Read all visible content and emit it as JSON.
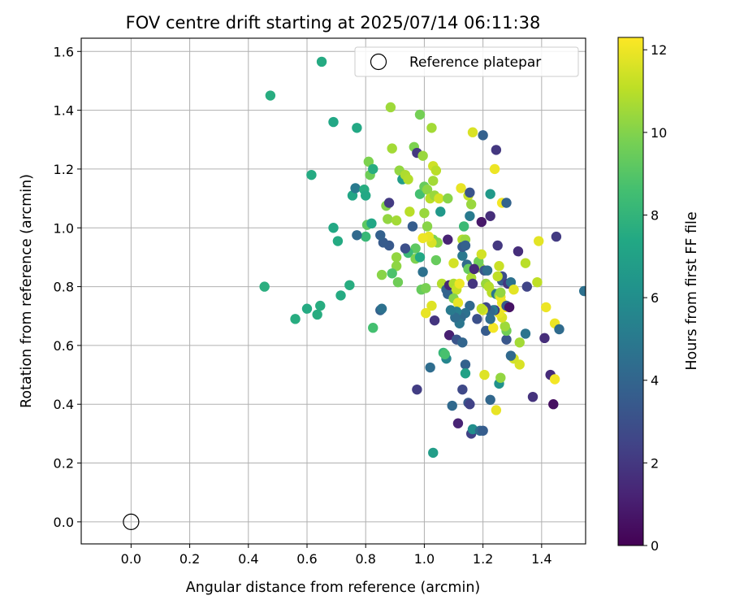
{
  "chart_data": {
    "type": "scatter",
    "title": "FOV centre drift starting at 2025/07/14 06:11:38",
    "xlabel": "Angular distance from reference (arcmin)",
    "ylabel": "Rotation from reference (arcmin)",
    "xlim": [
      -0.17,
      1.55
    ],
    "ylim": [
      -0.075,
      1.645
    ],
    "xticks": [
      "0.0",
      "0.2",
      "0.4",
      "0.6",
      "0.8",
      "1.0",
      "1.2",
      "1.4"
    ],
    "xtick_values": [
      0.0,
      0.2,
      0.4,
      0.6,
      0.8,
      1.0,
      1.2,
      1.4
    ],
    "yticks": [
      "0.0",
      "0.2",
      "0.4",
      "0.6",
      "0.8",
      "1.0",
      "1.2",
      "1.4",
      "1.6"
    ],
    "ytick_values": [
      0.0,
      0.2,
      0.4,
      0.6,
      0.8,
      1.0,
      1.2,
      1.4,
      1.6
    ],
    "grid": true,
    "legend": {
      "location": "top-right",
      "entries": [
        {
          "label": "Reference platepar",
          "marker": "open-circle"
        }
      ]
    },
    "reference_point": {
      "x": 0.0,
      "y": 0.0,
      "label": "Reference platepar"
    },
    "colorbar": {
      "label": "Hours from first FF file",
      "range": [
        0,
        12.3
      ],
      "ticks": [
        "0",
        "2",
        "4",
        "6",
        "8",
        "10",
        "12"
      ],
      "tick_values": [
        0,
        2,
        4,
        6,
        8,
        10,
        12
      ],
      "colormap": "viridis"
    },
    "points": [
      [
        0.65,
        1.565,
        7.5
      ],
      [
        0.475,
        1.45,
        7.6
      ],
      [
        0.69,
        1.36,
        7.3
      ],
      [
        0.77,
        1.34,
        7.4
      ],
      [
        0.615,
        1.18,
        7.5
      ],
      [
        0.455,
        0.8,
        7.7
      ],
      [
        0.56,
        0.69,
        7.6
      ],
      [
        0.6,
        0.725,
        7.5
      ],
      [
        0.645,
        0.735,
        7.6
      ],
      [
        0.635,
        0.705,
        7.6
      ],
      [
        0.715,
        0.77,
        7.5
      ],
      [
        0.745,
        0.805,
        7.6
      ],
      [
        0.69,
        1.0,
        7.4
      ],
      [
        0.705,
        0.955,
        7.5
      ],
      [
        0.755,
        1.11,
        7.2
      ],
      [
        0.765,
        1.135,
        5.0
      ],
      [
        0.795,
        1.13,
        7.6
      ],
      [
        0.8,
        1.11,
        7.4
      ],
      [
        0.8,
        0.97,
        8.2
      ],
      [
        0.805,
        1.01,
        9.2
      ],
      [
        0.82,
        1.015,
        7.3
      ],
      [
        0.825,
        0.66,
        8.6
      ],
      [
        0.77,
        0.975,
        4.2
      ],
      [
        0.81,
        1.225,
        9.9
      ],
      [
        0.815,
        1.18,
        9.6
      ],
      [
        0.825,
        1.2,
        7.6
      ],
      [
        0.885,
        1.41,
        10.5
      ],
      [
        0.89,
        1.27,
        10.6
      ],
      [
        0.915,
        1.195,
        10.3
      ],
      [
        0.925,
        1.165,
        6.8
      ],
      [
        0.935,
        1.18,
        10.8
      ],
      [
        0.945,
        1.165,
        10.9
      ],
      [
        0.965,
        1.275,
        9.9
      ],
      [
        0.975,
        1.255,
        2.0
      ],
      [
        0.985,
        1.385,
        9.7
      ],
      [
        0.995,
        1.245,
        10.4
      ],
      [
        1.025,
        1.34,
        10.6
      ],
      [
        1.03,
        1.21,
        11.4
      ],
      [
        1.04,
        1.195,
        11.0
      ],
      [
        1.03,
        1.16,
        10.6
      ],
      [
        0.985,
        1.115,
        8.6
      ],
      [
        1.0,
        1.14,
        9.4
      ],
      [
        1.01,
        1.13,
        10.2
      ],
      [
        1.02,
        1.1,
        11.0
      ],
      [
        1.035,
        1.11,
        10.4
      ],
      [
        1.05,
        1.1,
        11.5
      ],
      [
        1.08,
        1.1,
        10.1
      ],
      [
        1.125,
        1.135,
        11.9
      ],
      [
        1.15,
        1.11,
        11.2
      ],
      [
        1.155,
        1.12,
        3.2
      ],
      [
        1.16,
        1.08,
        10.4
      ],
      [
        1.155,
        1.04,
        5.0
      ],
      [
        1.165,
        1.325,
        11.6
      ],
      [
        1.2,
        1.315,
        3.8
      ],
      [
        1.245,
        1.265,
        2.0
      ],
      [
        1.24,
        1.2,
        12.0
      ],
      [
        1.225,
        1.115,
        6.6
      ],
      [
        1.265,
        1.085,
        12.1
      ],
      [
        1.28,
        1.085,
        3.9
      ],
      [
        1.195,
        1.02,
        0.8
      ],
      [
        1.225,
        1.04,
        1.6
      ],
      [
        0.87,
        1.075,
        10.0
      ],
      [
        0.88,
        1.085,
        2.1
      ],
      [
        0.875,
        1.03,
        10.3
      ],
      [
        0.905,
        1.025,
        10.6
      ],
      [
        0.95,
        1.055,
        11.0
      ],
      [
        0.96,
        1.005,
        3.6
      ],
      [
        1.0,
        1.05,
        10.4
      ],
      [
        1.01,
        1.005,
        10.1
      ],
      [
        1.055,
        1.055,
        6.5
      ],
      [
        1.135,
        1.005,
        8.3
      ],
      [
        1.13,
        0.96,
        10.9
      ],
      [
        1.14,
        0.96,
        10.4
      ],
      [
        1.08,
        0.96,
        1.2
      ],
      [
        1.045,
        0.95,
        10.1
      ],
      [
        1.03,
        0.96,
        9.9
      ],
      [
        1.025,
        0.95,
        11.6
      ],
      [
        1.015,
        0.97,
        11.9
      ],
      [
        0.995,
        0.965,
        12.0
      ],
      [
        0.97,
        0.93,
        9.2
      ],
      [
        0.945,
        0.915,
        8.3
      ],
      [
        0.935,
        0.93,
        3.0
      ],
      [
        0.88,
        0.94,
        3.4
      ],
      [
        0.86,
        0.95,
        3.5
      ],
      [
        0.85,
        0.975,
        3.8
      ],
      [
        0.905,
        0.9,
        10.3
      ],
      [
        0.905,
        0.87,
        10.2
      ],
      [
        0.89,
        0.845,
        8.8
      ],
      [
        0.855,
        0.84,
        10.1
      ],
      [
        0.91,
        0.815,
        9.6
      ],
      [
        0.97,
        0.895,
        9.9
      ],
      [
        0.985,
        0.9,
        7.4
      ],
      [
        1.04,
        0.89,
        9.4
      ],
      [
        0.995,
        0.85,
        4.6
      ],
      [
        0.99,
        0.79,
        9.4
      ],
      [
        1.005,
        0.795,
        9.8
      ],
      [
        1.06,
        0.81,
        10.9
      ],
      [
        1.075,
        0.79,
        4.0
      ],
      [
        1.08,
        0.775,
        3.9
      ],
      [
        1.085,
        0.805,
        1.4
      ],
      [
        1.1,
        0.81,
        10.8
      ],
      [
        1.11,
        0.79,
        11.2
      ],
      [
        1.1,
        0.76,
        10.0
      ],
      [
        1.115,
        0.745,
        11.9
      ],
      [
        1.12,
        0.81,
        12.0
      ],
      [
        1.1,
        0.88,
        11.5
      ],
      [
        1.13,
        0.905,
        4.9
      ],
      [
        1.13,
        0.935,
        3.5
      ],
      [
        1.14,
        0.94,
        3.8
      ],
      [
        1.145,
        0.875,
        4.3
      ],
      [
        1.15,
        0.86,
        9.4
      ],
      [
        1.16,
        0.83,
        10.7
      ],
      [
        1.165,
        0.81,
        1.9
      ],
      [
        1.17,
        0.86,
        10.8
      ],
      [
        1.19,
        0.865,
        10.4
      ],
      [
        1.185,
        0.885,
        9.6
      ],
      [
        1.195,
        0.91,
        11.5
      ],
      [
        1.205,
        0.855,
        3.3
      ],
      [
        1.215,
        0.855,
        4.4
      ],
      [
        1.21,
        0.81,
        10.4
      ],
      [
        1.22,
        0.8,
        10.9
      ],
      [
        1.23,
        0.78,
        11.0
      ],
      [
        1.245,
        0.775,
        4.8
      ],
      [
        1.255,
        0.77,
        10.2
      ],
      [
        1.26,
        0.765,
        11.9
      ],
      [
        1.265,
        0.82,
        3.6
      ],
      [
        1.265,
        0.835,
        2.9
      ],
      [
        1.25,
        0.835,
        11.1
      ],
      [
        1.255,
        0.87,
        11.3
      ],
      [
        1.25,
        0.94,
        2.0
      ],
      [
        1.285,
        0.81,
        1.9
      ],
      [
        1.295,
        0.815,
        4.6
      ],
      [
        1.305,
        0.79,
        11.8
      ],
      [
        1.32,
        0.92,
        1.6
      ],
      [
        1.345,
        0.88,
        11.0
      ],
      [
        1.35,
        0.8,
        2.5
      ],
      [
        1.385,
        0.815,
        11.1
      ],
      [
        1.39,
        0.955,
        11.8
      ],
      [
        1.41,
        0.625,
        1.6
      ],
      [
        1.415,
        0.73,
        12.0
      ],
      [
        1.43,
        0.5,
        1.5
      ],
      [
        1.44,
        0.4,
        0.5
      ],
      [
        1.445,
        0.485,
        12.1
      ],
      [
        1.445,
        0.675,
        12.0
      ],
      [
        1.45,
        0.97,
        2.1
      ],
      [
        1.46,
        0.655,
        4.3
      ],
      [
        1.545,
        0.785,
        4.6
      ],
      [
        1.37,
        0.425,
        1.8
      ],
      [
        1.345,
        0.64,
        4.7
      ],
      [
        1.325,
        0.61,
        10.6
      ],
      [
        1.325,
        0.535,
        11.6
      ],
      [
        1.305,
        0.555,
        11.5
      ],
      [
        1.295,
        0.565,
        4.2
      ],
      [
        1.28,
        0.62,
        3.3
      ],
      [
        1.28,
        0.65,
        9.6
      ],
      [
        1.275,
        0.665,
        10.5
      ],
      [
        1.265,
        0.695,
        11.6
      ],
      [
        1.255,
        0.71,
        11.9
      ],
      [
        1.265,
        0.745,
        12.0
      ],
      [
        1.275,
        0.73,
        12.2
      ],
      [
        1.28,
        0.735,
        3.5
      ],
      [
        1.29,
        0.73,
        0.6
      ],
      [
        1.26,
        0.78,
        10.3
      ],
      [
        1.24,
        0.72,
        1.8
      ],
      [
        1.235,
        0.72,
        5.1
      ],
      [
        1.225,
        0.715,
        4.2
      ],
      [
        1.21,
        0.73,
        2.7
      ],
      [
        1.2,
        0.72,
        11.6
      ],
      [
        1.195,
        0.725,
        11.1
      ],
      [
        1.21,
        0.65,
        3.5
      ],
      [
        1.235,
        0.66,
        12.1
      ],
      [
        1.225,
        0.69,
        4.4
      ],
      [
        1.18,
        0.69,
        3.0
      ],
      [
        1.155,
        0.735,
        4.2
      ],
      [
        1.14,
        0.71,
        4.6
      ],
      [
        1.125,
        0.695,
        4.3
      ],
      [
        1.12,
        0.675,
        4.8
      ],
      [
        1.11,
        0.715,
        5.2
      ],
      [
        1.105,
        0.695,
        4.4
      ],
      [
        1.09,
        0.72,
        5.0
      ],
      [
        1.085,
        0.635,
        1.1
      ],
      [
        1.11,
        0.62,
        3.2
      ],
      [
        1.13,
        0.61,
        4.0
      ],
      [
        1.13,
        0.45,
        2.7
      ],
      [
        1.14,
        0.535,
        3.8
      ],
      [
        1.14,
        0.505,
        7.0
      ],
      [
        1.15,
        0.405,
        3.4
      ],
      [
        1.155,
        0.4,
        2.4
      ],
      [
        1.16,
        0.3,
        2.4
      ],
      [
        1.165,
        0.315,
        6.0
      ],
      [
        1.19,
        0.31,
        4.4
      ],
      [
        1.2,
        0.31,
        3.6
      ],
      [
        1.115,
        0.335,
        1.2
      ],
      [
        1.095,
        0.395,
        4.2
      ],
      [
        1.075,
        0.555,
        5.6
      ],
      [
        1.065,
        0.575,
        8.1
      ],
      [
        1.07,
        0.57,
        8.7
      ],
      [
        1.035,
        0.685,
        1.9
      ],
      [
        1.025,
        0.735,
        11.7
      ],
      [
        1.005,
        0.71,
        11.9
      ],
      [
        1.02,
        0.525,
        4.4
      ],
      [
        0.975,
        0.45,
        2.2
      ],
      [
        1.03,
        0.235,
        6.8
      ],
      [
        1.245,
        0.38,
        11.9
      ],
      [
        1.205,
        0.5,
        11.7
      ],
      [
        1.225,
        0.415,
        4.1
      ],
      [
        1.255,
        0.47,
        6.2
      ],
      [
        1.26,
        0.49,
        10.3
      ],
      [
        0.85,
        0.72,
        3.8
      ],
      [
        0.855,
        0.725,
        4.6
      ],
      [
        1.17,
        0.86,
        1.5
      ]
    ]
  }
}
